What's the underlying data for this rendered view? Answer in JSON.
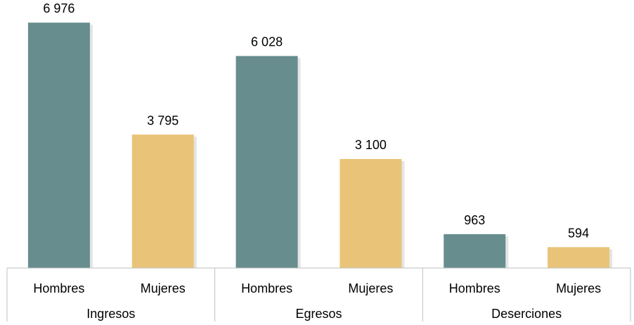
{
  "chart_data": {
    "type": "bar",
    "ylim": [
      0,
      7500
    ],
    "grid": false,
    "legend": "none",
    "groups": [
      {
        "label": "Ingresos",
        "bars": [
          {
            "label": "Hombres",
            "value": 6976,
            "value_label": "6 976",
            "color": "#678d8e"
          },
          {
            "label": "Mujeres",
            "value": 3795,
            "value_label": "3 795",
            "color": "#e9c478"
          }
        ]
      },
      {
        "label": "Egresos",
        "bars": [
          {
            "label": "Hombres",
            "value": 6028,
            "value_label": "6 028",
            "color": "#678d8e"
          },
          {
            "label": "Mujeres",
            "value": 3100,
            "value_label": "3 100",
            "color": "#e9c478"
          }
        ]
      },
      {
        "label": "Deserciones",
        "bars": [
          {
            "label": "Hombres",
            "value": 963,
            "value_label": "963",
            "color": "#678d8e"
          },
          {
            "label": "Mujeres",
            "value": 594,
            "value_label": "594",
            "color": "#e9c478"
          }
        ]
      }
    ],
    "colors": {
      "hombres": "#678d8e",
      "mujeres": "#e9c478",
      "axis": "#bfbfbf",
      "shadow": "#d9d9d9"
    }
  }
}
